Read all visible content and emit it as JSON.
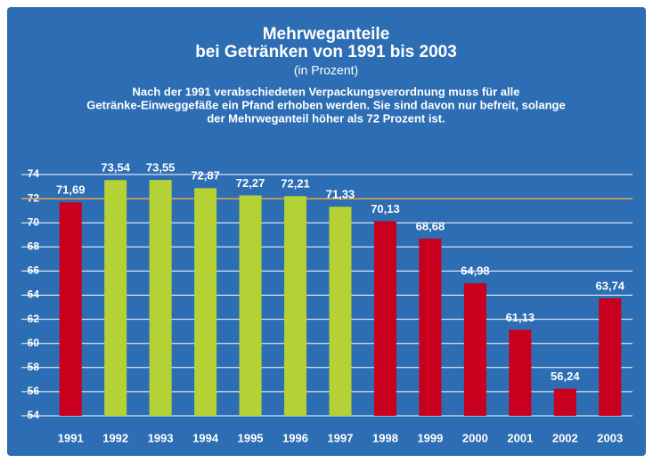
{
  "chart_data": {
    "type": "bar",
    "title": "Mehrweganteile",
    "subtitle": "bei Getränken von 1991 bis 2003",
    "unit_note": "(in Prozent)",
    "annotation": [
      "Nach der 1991 verabschiedeten Verpackungsverordnung muss für alle",
      "Getränke-Einweggefäße ein Pfand erhoben werden. Sie sind davon nur befreit, solange",
      "der Mehrweganteil höher als 72 Prozent ist."
    ],
    "categories": [
      "1991",
      "1992",
      "1993",
      "1994",
      "1995",
      "1996",
      "1997",
      "1998",
      "1999",
      "2000",
      "2001",
      "2002",
      "2003"
    ],
    "values": [
      71.69,
      73.54,
      73.55,
      72.87,
      72.27,
      72.21,
      71.33,
      70.13,
      68.68,
      64.98,
      61.13,
      56.24,
      63.74
    ],
    "value_labels": [
      "71,69",
      "73,54",
      "73,55",
      "72,87",
      "72,27",
      "72,21",
      "71,33",
      "70,13",
      "68,68",
      "64,98",
      "61,13",
      "56,24",
      "63,74"
    ],
    "colors": [
      "#c8001e",
      "#b4d236",
      "#b4d236",
      "#b4d236",
      "#b4d236",
      "#b4d236",
      "#b4d236",
      "#c8001e",
      "#c8001e",
      "#c8001e",
      "#c8001e",
      "#c8001e",
      "#c8001e"
    ],
    "ylim": [
      54,
      74
    ],
    "yticks": [
      54,
      56,
      58,
      60,
      62,
      64,
      66,
      68,
      70,
      72,
      74
    ],
    "grid": true,
    "grid_color": "#ffffff",
    "reference_line": 72,
    "reference_color": "#e8a040",
    "background": "#2c6db4"
  }
}
